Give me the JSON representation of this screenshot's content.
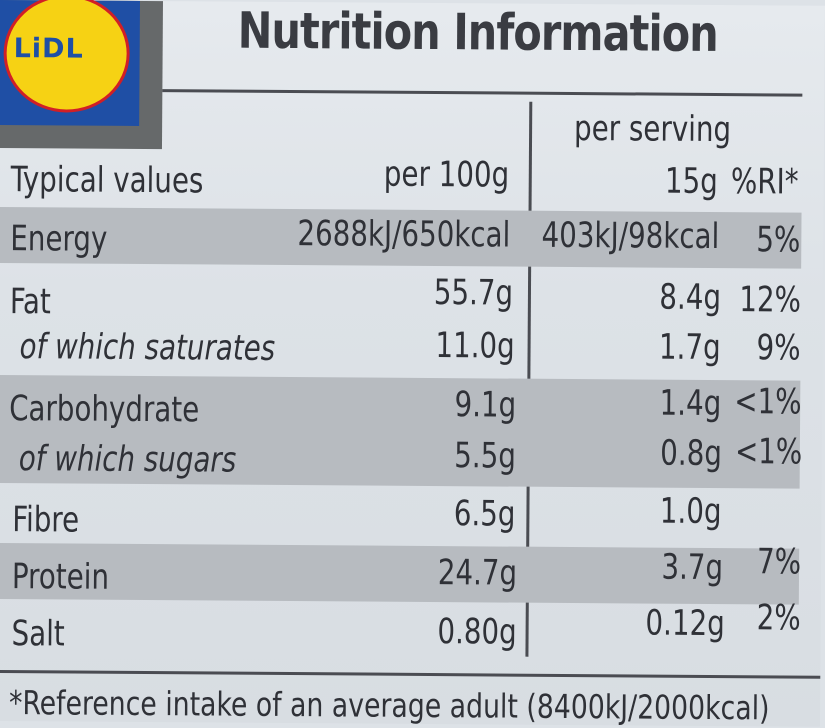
{
  "logo": {
    "text": "LiDL"
  },
  "title": "Nutrition Information",
  "header": {
    "serving_label": "per serving",
    "typical_values": "Typical values",
    "per_100g": "per 100g",
    "serving_size": "15g",
    "ri": "%RI*"
  },
  "rows": [
    {
      "name": "Energy",
      "per100": "2688kJ/650kcal",
      "serving": "403kJ/98kcal",
      "ri": "5%"
    },
    {
      "name": "Fat",
      "per100": "55.7g",
      "serving": "8.4g",
      "ri": "12%"
    },
    {
      "name": "of which saturates",
      "per100": "11.0g",
      "serving": "1.7g",
      "ri": "9%"
    },
    {
      "name": "Carbohydrate",
      "per100": "9.1g",
      "serving": "1.4g",
      "ri": "<1%"
    },
    {
      "name": "of which sugars",
      "per100": "5.5g",
      "serving": "0.8g",
      "ri": "<1%"
    },
    {
      "name": "Fibre",
      "per100": "6.5g",
      "serving": "1.0g",
      "ri": ""
    },
    {
      "name": "Protein",
      "per100": "24.7g",
      "serving": "3.7g",
      "ri": "7%"
    },
    {
      "name": "Salt",
      "per100": "0.80g",
      "serving": "0.12g",
      "ri": "2%"
    }
  ],
  "footnote": "*Reference intake of an average adult (8400kJ/2000kcal)",
  "colors": {
    "logo_blue": "#1f4fa5",
    "logo_yellow": "#f6d214",
    "logo_red": "#d11f26",
    "row_shade": "#b7bbc0"
  }
}
